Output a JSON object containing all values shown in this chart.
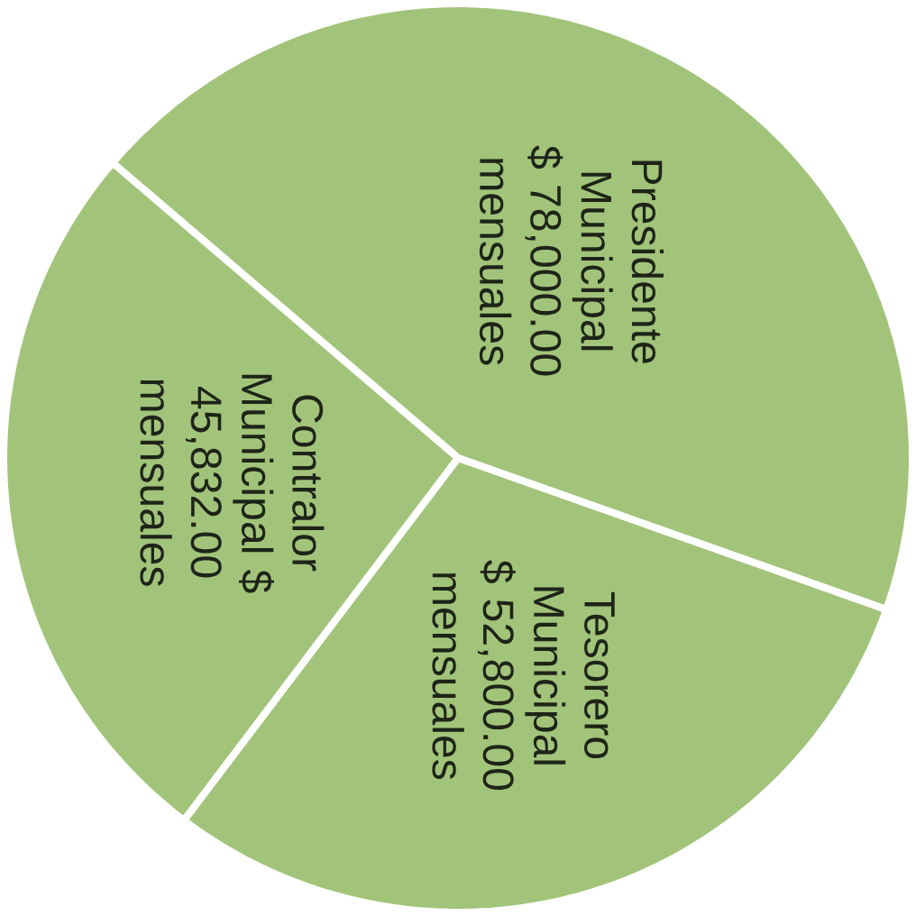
{
  "chart_data": {
    "type": "pie",
    "categories": [
      "Presidente Municipal",
      "Tesorero Municipal",
      "Contralor Municipal"
    ],
    "values": [
      78000,
      52800,
      45832
    ],
    "value_labels": [
      "$ 78,000.00 mensuales",
      "$ 52,800.00 mensuales",
      "$ 45,832.00 mensuales"
    ],
    "colors": [
      "#a2c47a",
      "#a2c47a",
      "#a2c47a"
    ]
  }
}
